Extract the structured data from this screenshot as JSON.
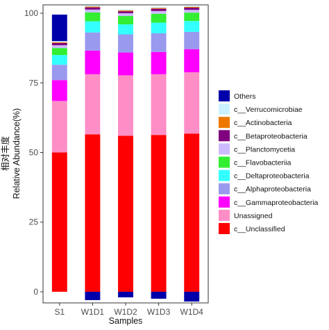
{
  "chart_data": {
    "type": "bar",
    "stacked": true,
    "xlabel": "Samples",
    "ylabel_lines": [
      "相对丰度",
      "Relative Abundance(%)"
    ],
    "ylim": [
      -4,
      103
    ],
    "yticks": [
      0,
      25,
      50,
      75,
      100
    ],
    "categories": [
      "S1",
      "W1D1",
      "W1D2",
      "W1D3",
      "W1D4"
    ],
    "series": [
      {
        "name": "c__Unclassified",
        "color": "#ff0000",
        "values": [
          50,
          56.5,
          56,
          56.3,
          56.8
        ]
      },
      {
        "name": "Unassigned",
        "color": "#ff8ec7",
        "values": [
          18.5,
          21.6,
          21.7,
          21.8,
          22
        ]
      },
      {
        "name": "c__Gammaproteobacteria",
        "color": "#ff00ff",
        "values": [
          7.5,
          8.5,
          8.2,
          8.0,
          8.3
        ]
      },
      {
        "name": "c__Alphaproteobacteria",
        "color": "#9999ee",
        "values": [
          5.5,
          6.5,
          6.5,
          6.7,
          6.2
        ]
      },
      {
        "name": "c__Deltaproteobacteria",
        "color": "#33ffff",
        "values": [
          3.5,
          4.0,
          3.6,
          3.8,
          3.9
        ]
      },
      {
        "name": "c__Flavobacteriia",
        "color": "#33ee33",
        "values": [
          2.5,
          3.2,
          3.0,
          3.2,
          3.0
        ]
      },
      {
        "name": "c__Planctomycetia",
        "color": "#ccbbff",
        "values": [
          1.0,
          1.0,
          1.0,
          1.0,
          1.0
        ]
      },
      {
        "name": "c__Betaproteobacteria",
        "color": "#800080",
        "values": [
          0.8,
          0.8,
          0.7,
          0.8,
          0.8
        ]
      },
      {
        "name": "c__Actinobacteria",
        "color": "#ee7700",
        "values": [
          0.3,
          0.3,
          0.3,
          0.3,
          0.3
        ]
      },
      {
        "name": "c__Verrucomicrobiae",
        "color": "#ccf2ff",
        "values": [
          0.4,
          0.4,
          0.4,
          0.4,
          0.4
        ]
      },
      {
        "name": "Others",
        "color": "#0000aa",
        "values": [
          9.5,
          -3.0,
          -2.0,
          -2.5,
          -3.5
        ]
      }
    ],
    "grid": false,
    "legend_position": "right"
  }
}
